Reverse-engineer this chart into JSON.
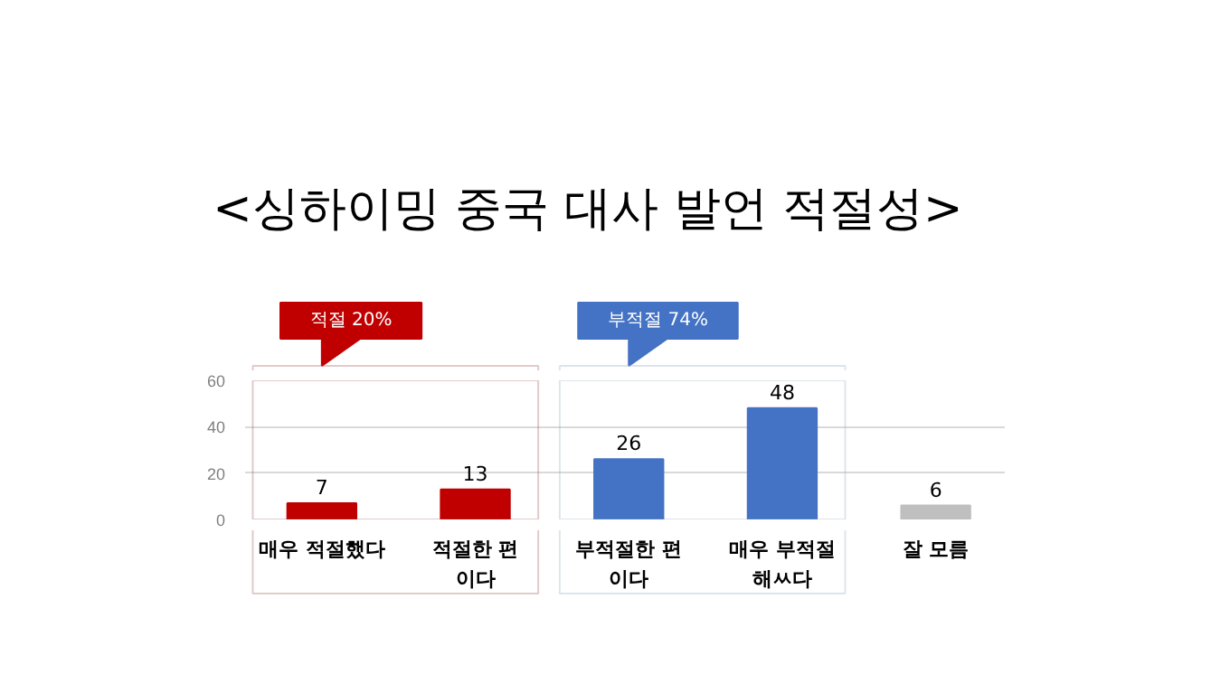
{
  "chart_data": {
    "type": "bar",
    "title": "<싱하이밍 중국 대사 발언 적절성>",
    "categories": [
      "매우 적절했다",
      "적절한 편\n이다",
      "부적절한 편\n이다",
      "매우 부적절\n해ㅆ다",
      "잘 모름"
    ],
    "values": [
      7,
      13,
      26,
      48,
      6
    ],
    "colors": [
      "#c00000",
      "#c00000",
      "#4472c4",
      "#4472c4",
      "#bfbfbf"
    ],
    "ylim": [
      0,
      60
    ],
    "yticks": [
      0,
      20,
      40,
      60
    ],
    "grid": "y",
    "data_labels": true,
    "annotations": [
      "적절 20%",
      "부적절 74%"
    ]
  }
}
